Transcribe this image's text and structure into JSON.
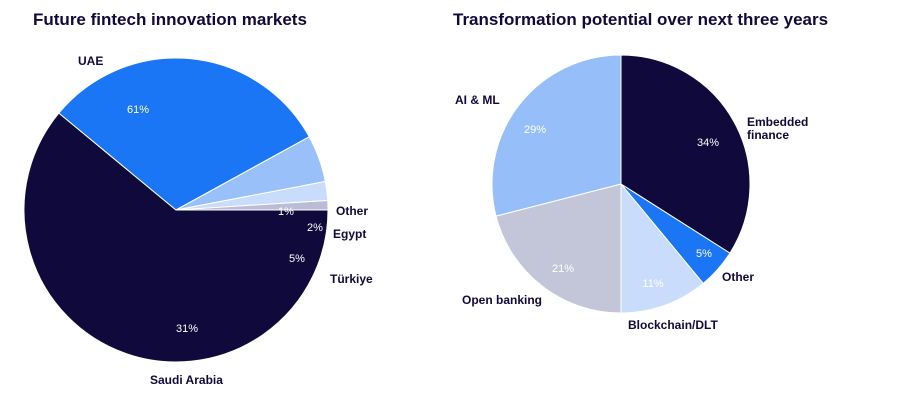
{
  "chart_data": [
    {
      "type": "pie",
      "title": "Future fintech innovation markets",
      "slices": [
        {
          "label": "UAE",
          "value": 61,
          "value_label": "61%",
          "color": "#0f0a3b"
        },
        {
          "label": "Saudi Arabia",
          "value": 31,
          "value_label": "31%",
          "color": "#1b76f5"
        },
        {
          "label": "Türkiye",
          "value": 5,
          "value_label": "5%",
          "color": "#9ac0f9"
        },
        {
          "label": "Egypt",
          "value": 2,
          "value_label": "2%",
          "color": "#c9dcfb"
        },
        {
          "label": "Other",
          "value": 1,
          "value_label": "1%",
          "color": "#bbbcd6"
        }
      ]
    },
    {
      "type": "pie",
      "title": "Transformation potential over next three years",
      "slices": [
        {
          "label": "Embedded finance",
          "value": 34,
          "value_label": "34%",
          "color": "#0f0a3b"
        },
        {
          "label": "Other",
          "value": 5,
          "value_label": "5%",
          "color": "#1b76f5"
        },
        {
          "label": "Blockchain/DLT",
          "value": 11,
          "value_label": "11%",
          "color": "#c9dcfb"
        },
        {
          "label": "Open banking",
          "value": 21,
          "value_label": "21%",
          "color": "#c3c5d9"
        },
        {
          "label": "AI & ML",
          "value": 29,
          "value_label": "29%",
          "color": "#96bff9"
        }
      ]
    }
  ]
}
